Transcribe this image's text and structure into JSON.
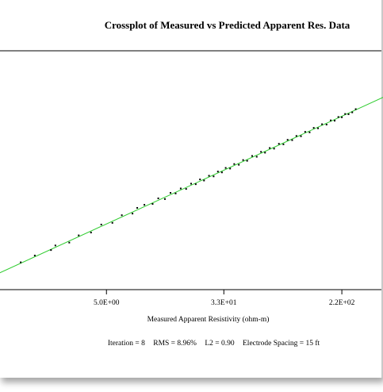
{
  "chart_data": {
    "type": "scatter",
    "title": "Crossplot of Measured vs Predicted Apparent Res. Data",
    "xlabel": "Measured Apparent Resistivity (ohm-m)",
    "ylabel": "",
    "x_scale": "log",
    "x_ticks": [
      "5.0E+00",
      "3.3E+01",
      "2.2E+02"
    ],
    "x_tick_values": [
      5.0,
      33.0,
      220.0
    ],
    "xlim": [
      1.0,
      400.0
    ],
    "ylim": [
      1.0,
      400.0
    ],
    "grid": false,
    "fit_line_color": "#2ecc2e",
    "point_color": "#000000",
    "series": [
      {
        "points": [
          [
            1.26,
            1.3
          ],
          [
            1.58,
            1.65
          ],
          [
            2.05,
            2.0
          ],
          [
            2.2,
            2.35
          ],
          [
            2.75,
            2.6
          ],
          [
            3.2,
            3.35
          ],
          [
            3.9,
            3.7
          ],
          [
            4.6,
            4.9
          ],
          [
            5.5,
            5.2
          ],
          [
            6.4,
            6.8
          ],
          [
            7.6,
            7.2
          ],
          [
            8.2,
            8.8
          ],
          [
            9.2,
            9.8
          ],
          [
            10.5,
            10.1
          ],
          [
            11.5,
            12.3
          ],
          [
            12.8,
            12.0
          ],
          [
            14.0,
            14.9
          ],
          [
            15.2,
            14.6
          ],
          [
            16.5,
            17.4
          ],
          [
            18.0,
            17.1
          ],
          [
            19.5,
            20.6
          ],
          [
            21.0,
            20.2
          ],
          [
            22.5,
            23.9
          ],
          [
            24.0,
            23.0
          ],
          [
            26.0,
            27.2
          ],
          [
            28.0,
            26.6
          ],
          [
            30.0,
            31.5
          ],
          [
            32.0,
            30.6
          ],
          [
            34.0,
            35.8
          ],
          [
            36.5,
            35.0
          ],
          [
            39.0,
            41.0
          ],
          [
            42.0,
            40.0
          ],
          [
            45.0,
            47.2
          ],
          [
            48.0,
            46.0
          ],
          [
            52.0,
            54.5
          ],
          [
            56.0,
            53.0
          ],
          [
            60.0,
            63.0
          ],
          [
            64.0,
            61.2
          ],
          [
            69.0,
            72.0
          ],
          [
            74.0,
            70.5
          ],
          [
            80.0,
            83.5
          ],
          [
            86.0,
            82.0
          ],
          [
            92.0,
            96.0
          ],
          [
            99.0,
            95.0
          ],
          [
            106.0,
            110.0
          ],
          [
            114.0,
            109.0
          ],
          [
            122.0,
            127.0
          ],
          [
            131.0,
            125.0
          ],
          [
            140.0,
            146.0
          ],
          [
            150.0,
            144.0
          ],
          [
            160.0,
            166.0
          ],
          [
            172.0,
            164.0
          ],
          [
            184.0,
            190.0
          ],
          [
            196.0,
            188.0
          ],
          [
            208.0,
            214.0
          ],
          [
            220.0,
            212.0
          ],
          [
            232.0,
            238.0
          ],
          [
            245.0,
            236.0
          ],
          [
            260.0,
            252.0
          ],
          [
            275.0,
            282.0
          ]
        ]
      }
    ]
  },
  "stats": {
    "iteration": "Iteration = 8",
    "rms": "RMS = 8.96%",
    "l2": "L2 = 0.90",
    "spacing": "Electrode Spacing = 15 ft"
  }
}
